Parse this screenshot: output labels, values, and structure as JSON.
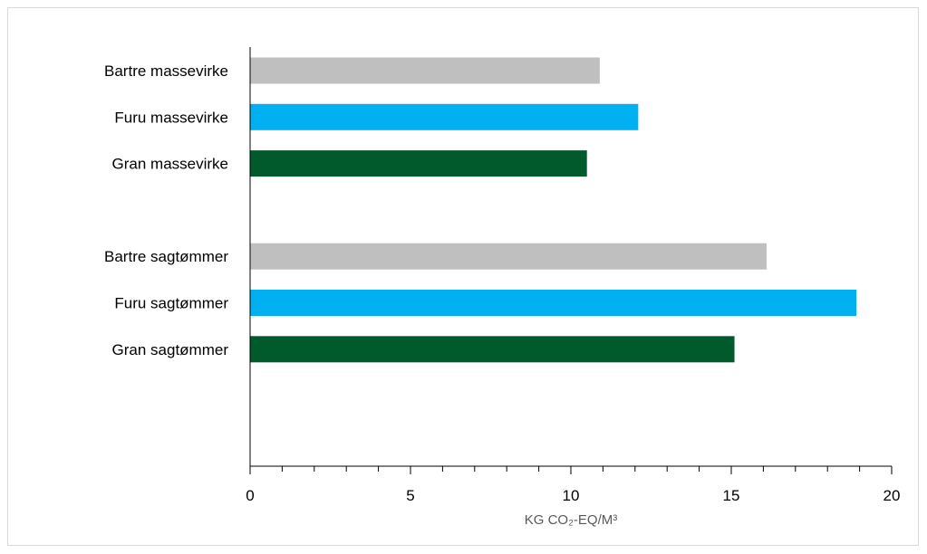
{
  "chart_data": {
    "type": "bar",
    "orientation": "horizontal",
    "categories": [
      "Bartre massevirke",
      "Furu massevirke",
      "Gran massevirke",
      "",
      "Bartre sagtømmer",
      "Furu sagtømmer",
      "Gran sagtømmer"
    ],
    "values": [
      10.9,
      12.1,
      10.5,
      null,
      16.1,
      18.9,
      15.1
    ],
    "colors": [
      "#bfbfbf",
      "#00b0f0",
      "#005a2b",
      null,
      "#bfbfbf",
      "#00b0f0",
      "#005a2b"
    ],
    "xlabel": "KG CO₂-EQ/M³",
    "ylabel": "",
    "xlim": [
      0,
      20
    ],
    "xticks": [
      0,
      5,
      10,
      15,
      20
    ],
    "xtick_labels": [
      "0",
      "5",
      "10",
      "15",
      "20"
    ],
    "minor_tick_step": 1,
    "grid": false,
    "legend": "none"
  }
}
